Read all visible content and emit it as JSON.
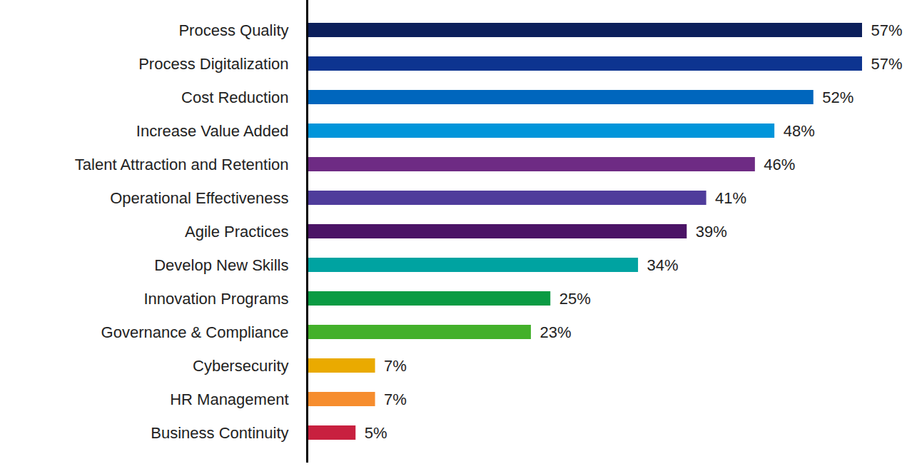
{
  "chart_data": {
    "type": "bar",
    "orientation": "horizontal",
    "categories": [
      "Process Quality",
      "Process Digitalization",
      "Cost Reduction",
      "Increase Value Added",
      "Talent Attraction and Retention",
      "Operational Effectiveness",
      "Agile Practices",
      "Develop New Skills",
      "Innovation Programs",
      "Governance & Compliance",
      "Cybersecurity",
      "HR Management",
      "Business Continuity"
    ],
    "values": [
      57,
      57,
      52,
      48,
      46,
      41,
      39,
      34,
      25,
      23,
      7,
      7,
      5
    ],
    "value_labels": [
      "57%",
      "57%",
      "52%",
      "48%",
      "46%",
      "41%",
      "39%",
      "34%",
      "25%",
      "23%",
      "7%",
      "7%",
      "5%"
    ],
    "colors": [
      "#0c1f5b",
      "#0d3490",
      "#0066bd",
      "#0095da",
      "#6e2b84",
      "#4f3c9b",
      "#4b1466",
      "#00a3a1",
      "#0a9b43",
      "#43b02a",
      "#eaaa00",
      "#f68d2e",
      "#c8203f"
    ],
    "xlim": [
      0,
      57
    ],
    "data_labels": true,
    "tick_labels": "y",
    "grid": false
  }
}
